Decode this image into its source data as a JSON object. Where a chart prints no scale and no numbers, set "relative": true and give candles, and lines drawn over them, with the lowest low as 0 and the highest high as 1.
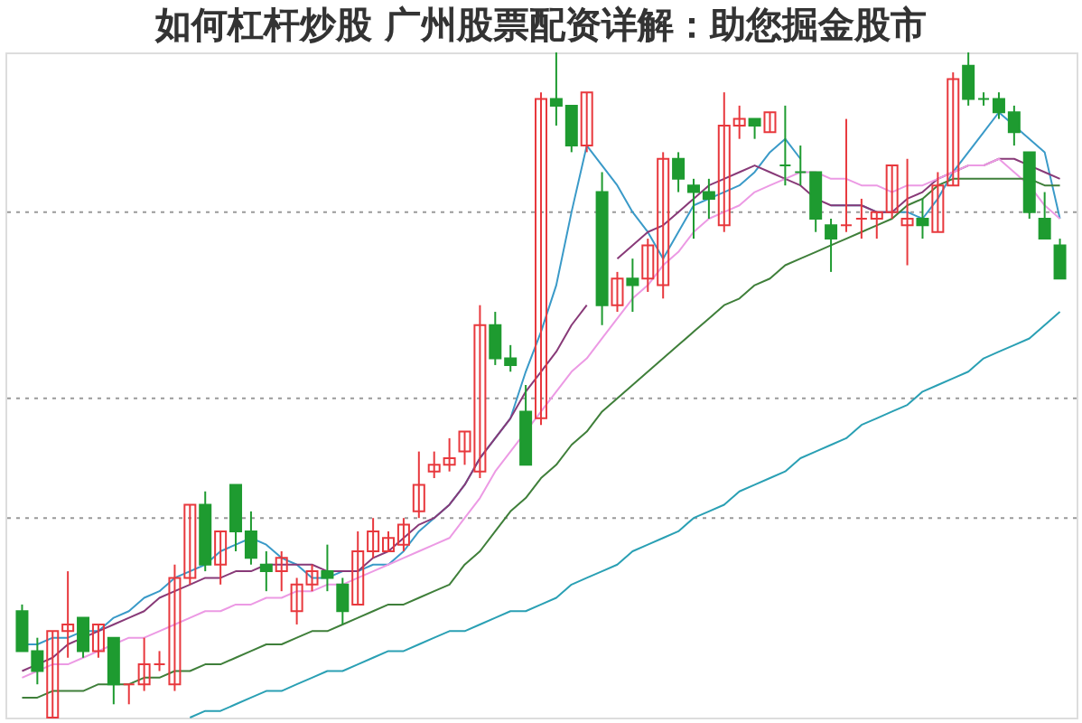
{
  "chart_data": {
    "type": "candlestick",
    "title": "如何杠杆炒股 广州股票配资详解：助您掘金股市",
    "relative": true,
    "categories": [
      null,
      null,
      null,
      null,
      null,
      null,
      null,
      null,
      null,
      null,
      null,
      null,
      null,
      null,
      null,
      null,
      null,
      null,
      null,
      null,
      null,
      null,
      null,
      null,
      null,
      null,
      null,
      null,
      null,
      null,
      null,
      null,
      null,
      null,
      null,
      null,
      null,
      null,
      null,
      null,
      null,
      null,
      null,
      null,
      null,
      null,
      null,
      null,
      null,
      null,
      null,
      null,
      null,
      null,
      null,
      null,
      null,
      null,
      null,
      null,
      null,
      null,
      null,
      null,
      null,
      null,
      null,
      null,
      null
    ],
    "ohlc": [
      [
        0.16,
        0.17,
        0.1,
        0.1
      ],
      [
        0.1,
        0.12,
        0.05,
        0.07
      ],
      [
        0.0,
        0.13,
        0.0,
        0.13
      ],
      [
        0.13,
        0.22,
        0.09,
        0.14
      ],
      [
        0.15,
        0.15,
        0.09,
        0.1
      ],
      [
        0.1,
        0.14,
        0.09,
        0.14
      ],
      [
        0.12,
        0.12,
        0.02,
        0.05
      ],
      [
        0.05,
        0.05,
        0.02,
        0.05
      ],
      [
        0.05,
        0.12,
        0.04,
        0.08
      ],
      [
        0.08,
        0.1,
        0.07,
        0.08
      ],
      [
        0.05,
        0.23,
        0.04,
        0.21
      ],
      [
        0.21,
        0.32,
        0.2,
        0.32
      ],
      [
        0.32,
        0.34,
        0.22,
        0.23
      ],
      [
        0.23,
        0.28,
        0.2,
        0.28
      ],
      [
        0.35,
        0.35,
        0.25,
        0.28
      ],
      [
        0.28,
        0.31,
        0.23,
        0.24
      ],
      [
        0.23,
        0.25,
        0.19,
        0.22
      ],
      [
        0.22,
        0.25,
        0.19,
        0.24
      ],
      [
        0.16,
        0.21,
        0.14,
        0.2
      ],
      [
        0.2,
        0.23,
        0.19,
        0.22
      ],
      [
        0.22,
        0.26,
        0.19,
        0.21
      ],
      [
        0.2,
        0.21,
        0.14,
        0.16
      ],
      [
        0.17,
        0.28,
        0.17,
        0.25
      ],
      [
        0.25,
        0.3,
        0.24,
        0.28
      ],
      [
        0.25,
        0.28,
        0.25,
        0.27
      ],
      [
        0.26,
        0.3,
        0.25,
        0.29
      ],
      [
        0.31,
        0.4,
        0.3,
        0.35
      ],
      [
        0.37,
        0.4,
        0.36,
        0.38
      ],
      [
        0.38,
        0.42,
        0.37,
        0.39
      ],
      [
        0.4,
        0.43,
        0.38,
        0.43
      ],
      [
        0.37,
        0.62,
        0.36,
        0.59
      ],
      [
        0.59,
        0.61,
        0.53,
        0.54
      ],
      [
        0.54,
        0.56,
        0.52,
        0.53
      ],
      [
        0.46,
        0.5,
        0.38,
        0.38
      ],
      [
        0.45,
        0.94,
        0.44,
        0.93
      ],
      [
        0.93,
        1.0,
        0.89,
        0.92
      ],
      [
        0.92,
        0.92,
        0.85,
        0.86
      ],
      [
        0.86,
        0.94,
        0.85,
        0.94
      ],
      [
        0.79,
        0.82,
        0.59,
        0.62
      ],
      [
        0.62,
        0.67,
        0.61,
        0.66
      ],
      [
        0.66,
        0.69,
        0.61,
        0.65
      ],
      [
        0.66,
        0.72,
        0.64,
        0.71
      ],
      [
        0.65,
        0.85,
        0.63,
        0.84
      ],
      [
        0.84,
        0.85,
        0.79,
        0.81
      ],
      [
        0.8,
        0.81,
        0.72,
        0.79
      ],
      [
        0.79,
        0.81,
        0.75,
        0.78
      ],
      [
        0.74,
        0.94,
        0.73,
        0.89
      ],
      [
        0.89,
        0.92,
        0.87,
        0.9
      ],
      [
        0.9,
        0.9,
        0.87,
        0.89
      ],
      [
        0.88,
        0.91,
        0.88,
        0.91
      ],
      [
        0.83,
        0.92,
        0.8,
        0.83
      ],
      [
        0.82,
        0.86,
        0.8,
        0.82
      ],
      [
        0.82,
        0.82,
        0.73,
        0.75
      ],
      [
        0.74,
        0.75,
        0.67,
        0.72
      ],
      [
        0.74,
        0.9,
        0.73,
        0.74
      ],
      [
        0.75,
        0.78,
        0.72,
        0.75
      ],
      [
        0.75,
        0.76,
        0.72,
        0.76
      ],
      [
        0.76,
        0.83,
        0.75,
        0.83
      ],
      [
        0.74,
        0.84,
        0.68,
        0.75
      ],
      [
        0.75,
        0.78,
        0.72,
        0.74
      ],
      [
        0.73,
        0.82,
        0.73,
        0.8
      ],
      [
        0.8,
        0.97,
        0.8,
        0.96
      ],
      [
        0.98,
        1.0,
        0.92,
        0.93
      ],
      [
        0.93,
        0.94,
        0.92,
        0.93
      ],
      [
        0.93,
        0.94,
        0.9,
        0.91
      ],
      [
        0.91,
        0.92,
        0.86,
        0.88
      ],
      [
        0.85,
        0.85,
        0.75,
        0.76
      ],
      [
        0.75,
        0.79,
        0.72,
        0.72
      ],
      [
        0.71,
        0.72,
        0.66,
        0.66
      ]
    ],
    "colors": [
      "#1e9b30",
      "#1e9b30",
      "#e8383d",
      "#e8383d",
      "#1e9b30",
      "#e8383d",
      "#1e9b30",
      "#e8383d",
      "#e8383d",
      "#e8383d",
      "#e8383d",
      "#e8383d",
      "#1e9b30",
      "#e8383d",
      "#1e9b30",
      "#1e9b30",
      "#1e9b30",
      "#e8383d",
      "#e8383d",
      "#e8383d",
      "#1e9b30",
      "#1e9b30",
      "#e8383d",
      "#e8383d",
      "#e8383d",
      "#e8383d",
      "#e8383d",
      "#e8383d",
      "#e8383d",
      "#e8383d",
      "#e8383d",
      "#1e9b30",
      "#1e9b30",
      "#1e9b30",
      "#e8383d",
      "#1e9b30",
      "#1e9b30",
      "#e8383d",
      "#1e9b30",
      "#e8383d",
      "#1e9b30",
      "#e8383d",
      "#e8383d",
      "#1e9b30",
      "#1e9b30",
      "#1e9b30",
      "#e8383d",
      "#e8383d",
      "#1e9b30",
      "#e8383d",
      "#1e9b30",
      "#1e9b30",
      "#1e9b30",
      "#1e9b30",
      "#e8383d",
      "#e8383d",
      "#e8383d",
      "#e8383d",
      "#e8383d",
      "#1e9b30",
      "#e8383d",
      "#e8383d",
      "#1e9b30",
      "#1e9b30",
      "#1e9b30",
      "#1e9b30",
      "#1e9b30",
      "#1e9b30",
      "#1e9b30"
    ],
    "series": [
      {
        "type": "line",
        "color": "#3a9ac8",
        "values": [
          0.11,
          0.11,
          0.12,
          0.12,
          0.13,
          0.13,
          0.15,
          0.16,
          0.18,
          0.19,
          0.21,
          0.22,
          0.23,
          0.25,
          0.26,
          0.27,
          0.26,
          0.24,
          0.23,
          0.21,
          0.21,
          0.22,
          0.22,
          0.23,
          0.23,
          0.25,
          0.28,
          0.3,
          0.32,
          0.35,
          0.39,
          0.42,
          0.45,
          0.52,
          0.58,
          0.65,
          0.76,
          0.86,
          0.83,
          0.8,
          0.76,
          0.73,
          0.69,
          0.73,
          0.77,
          0.78,
          0.79,
          0.8,
          0.82,
          0.85,
          0.87,
          0.84,
          null,
          0.77,
          0.77,
          0.77,
          0.76,
          0.76,
          0.76,
          0.75,
          0.78,
          0.82,
          0.85,
          0.88,
          0.91,
          0.89,
          0.87,
          0.85,
          0.75
        ]
      },
      {
        "type": "line",
        "color": "#883a78",
        "values": [
          0.07,
          0.08,
          0.09,
          0.11,
          0.12,
          0.13,
          0.14,
          0.15,
          0.16,
          0.18,
          0.19,
          0.2,
          0.21,
          0.21,
          0.22,
          0.22,
          0.23,
          0.23,
          0.23,
          0.23,
          0.22,
          0.22,
          0.22,
          0.24,
          0.25,
          0.27,
          0.29,
          0.3,
          0.32,
          0.35,
          0.39,
          0.42,
          0.45,
          0.49,
          0.52,
          0.55,
          0.59,
          0.62,
          null,
          0.69,
          0.71,
          0.73,
          0.74,
          0.76,
          0.78,
          0.8,
          0.81,
          0.82,
          0.83,
          0.82,
          0.81,
          0.8,
          0.78,
          0.77,
          0.77,
          0.77,
          0.76,
          0.76,
          0.78,
          0.79,
          0.81,
          0.82,
          0.83,
          0.83,
          0.84,
          0.84,
          0.83,
          0.82,
          0.81
        ]
      },
      {
        "type": "line",
        "color": "#ec9ae4",
        "values": [
          0.06,
          0.07,
          0.08,
          0.08,
          0.09,
          0.1,
          0.11,
          0.12,
          0.12,
          0.13,
          0.14,
          0.15,
          0.16,
          0.16,
          0.17,
          0.17,
          0.18,
          0.18,
          0.19,
          0.19,
          0.2,
          0.2,
          0.21,
          0.22,
          0.23,
          0.24,
          0.25,
          0.26,
          0.27,
          0.3,
          0.33,
          0.37,
          0.4,
          0.43,
          0.46,
          0.49,
          0.52,
          0.54,
          0.57,
          0.6,
          0.63,
          0.65,
          0.68,
          0.7,
          0.73,
          0.75,
          0.76,
          0.77,
          0.79,
          0.8,
          0.81,
          0.82,
          0.82,
          0.81,
          0.81,
          0.8,
          0.8,
          0.79,
          0.8,
          0.8,
          0.81,
          0.82,
          0.83,
          0.83,
          0.84,
          0.82,
          0.8,
          0.77,
          0.75
        ]
      },
      {
        "type": "line",
        "color": "#3f7f3a",
        "values": [
          0.03,
          0.03,
          0.04,
          0.04,
          0.04,
          0.05,
          0.05,
          0.05,
          0.06,
          0.06,
          0.07,
          0.07,
          0.08,
          0.08,
          0.09,
          0.1,
          0.11,
          0.11,
          0.12,
          0.13,
          0.13,
          0.14,
          0.15,
          0.16,
          0.17,
          0.17,
          0.18,
          0.19,
          0.2,
          0.23,
          0.25,
          0.28,
          0.31,
          0.33,
          0.36,
          0.38,
          0.41,
          0.43,
          0.46,
          0.48,
          0.5,
          0.52,
          0.54,
          0.56,
          0.58,
          0.6,
          0.62,
          0.63,
          0.65,
          0.66,
          0.68,
          0.69,
          0.7,
          0.71,
          0.72,
          0.73,
          0.74,
          0.75,
          0.77,
          0.78,
          0.8,
          0.81,
          0.81,
          0.81,
          0.81,
          0.81,
          0.81,
          0.8,
          0.8
        ]
      },
      {
        "type": "line",
        "color": "#2aa0b4",
        "values": [
          null,
          null,
          null,
          null,
          null,
          null,
          null,
          null,
          null,
          null,
          null,
          0.0,
          0.01,
          0.01,
          0.02,
          0.03,
          0.04,
          0.04,
          0.05,
          0.06,
          0.07,
          0.07,
          0.08,
          0.09,
          0.1,
          0.1,
          0.11,
          0.12,
          0.13,
          0.13,
          0.14,
          0.15,
          0.16,
          0.16,
          0.17,
          0.18,
          0.2,
          0.21,
          0.22,
          0.23,
          0.25,
          0.26,
          0.27,
          0.28,
          0.3,
          0.31,
          0.32,
          0.34,
          0.35,
          0.36,
          0.37,
          0.39,
          0.4,
          0.41,
          0.42,
          0.44,
          0.45,
          0.46,
          0.47,
          0.49,
          0.5,
          0.51,
          0.52,
          0.54,
          0.55,
          0.56,
          0.57,
          0.59,
          0.61
        ]
      }
    ],
    "ref_lines": [
      {
        "axis": "y",
        "value": 0.76,
        "color": "#9a9a9a",
        "line_style": "dotted"
      },
      {
        "axis": "y",
        "value": 0.48,
        "color": "#9a9a9a",
        "line_style": "dotted"
      },
      {
        "axis": "y",
        "value": 0.3,
        "color": "#9a9a9a",
        "line_style": "dotted"
      }
    ]
  }
}
